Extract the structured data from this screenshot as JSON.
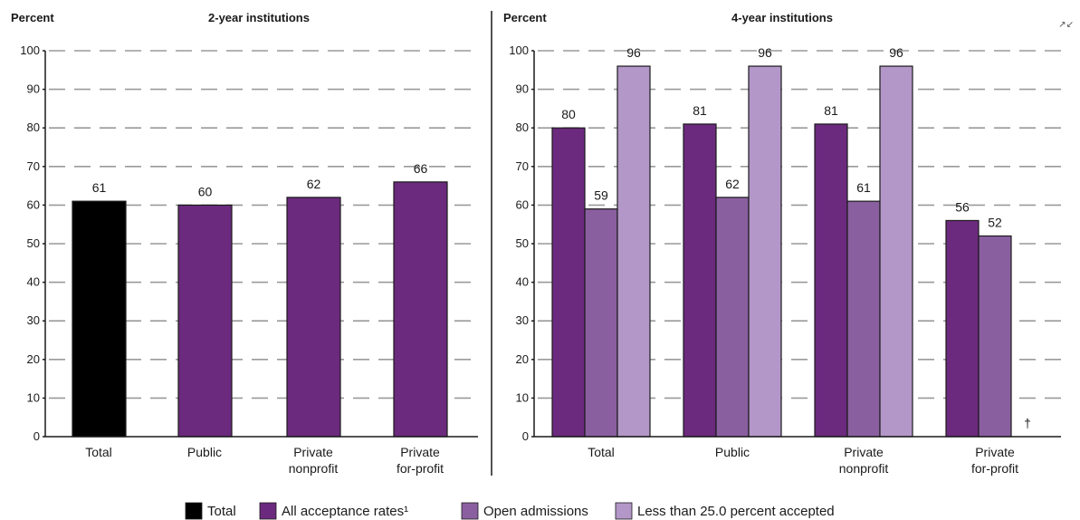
{
  "colors": {
    "total": "#000000",
    "all": "#6b2a7d",
    "open": "#8a5fa0",
    "less25": "#b397c8",
    "grid": "#9a9a9a"
  },
  "corner_mark": "↗↙",
  "legend": [
    {
      "label": "Total",
      "color_key": "total"
    },
    {
      "label": "All acceptance rates¹",
      "color_key": "all"
    },
    {
      "label": "Open admissions",
      "color_key": "open"
    },
    {
      "label": "Less than 25.0 percent accepted",
      "color_key": "less25"
    }
  ],
  "chart_data": [
    {
      "type": "bar",
      "title": "2-year institutions",
      "ylabel": "Percent",
      "ylim": [
        0,
        100
      ],
      "yticks": [
        0,
        10,
        20,
        30,
        40,
        50,
        60,
        70,
        80,
        90,
        100
      ],
      "categories": [
        [
          "Total"
        ],
        [
          "Public"
        ],
        [
          "Private",
          "nonprofit"
        ],
        [
          "Private",
          "for-profit"
        ]
      ],
      "values": [
        61,
        60,
        62,
        66
      ],
      "color_keys": [
        "total",
        "all",
        "all",
        "all"
      ]
    },
    {
      "type": "bar",
      "title": "4-year institutions",
      "ylabel": "Percent",
      "ylim": [
        0,
        100
      ],
      "yticks": [
        0,
        10,
        20,
        30,
        40,
        50,
        60,
        70,
        80,
        90,
        100
      ],
      "categories": [
        [
          "Total"
        ],
        [
          "Public"
        ],
        [
          "Private",
          "nonprofit"
        ],
        [
          "Private",
          "for-profit"
        ]
      ],
      "series": [
        {
          "name": "All acceptance rates",
          "color_key": "all",
          "values": [
            80,
            81,
            81,
            56
          ]
        },
        {
          "name": "Open admissions",
          "color_key": "open",
          "values": [
            59,
            62,
            61,
            52
          ]
        },
        {
          "name": "Less than 25.0 percent accepted",
          "color_key": "less25",
          "values": [
            96,
            96,
            96,
            null
          ]
        }
      ],
      "missing_marker": "†"
    }
  ]
}
